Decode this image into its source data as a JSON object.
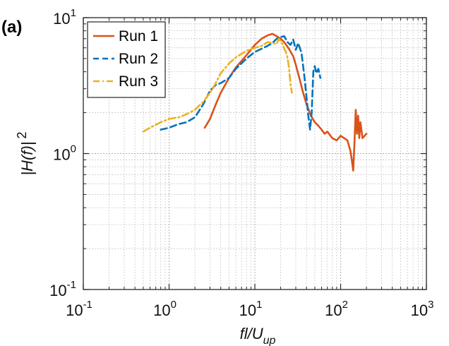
{
  "panel_label": "(a)",
  "chart_data": {
    "type": "line",
    "xlabel": {
      "main": "fl/U",
      "sub": "up"
    },
    "ylabel": {
      "main": "|H(f)|",
      "sup": "2"
    },
    "xscale": "log",
    "yscale": "log",
    "xlim": [
      0.1,
      1000
    ],
    "ylim": [
      0.1,
      10
    ],
    "grid": true,
    "legend_position": "top-left",
    "x_ticks": [
      {
        "base": "10",
        "exp": "-1"
      },
      {
        "base": "10",
        "exp": "0"
      },
      {
        "base": "10",
        "exp": "1"
      },
      {
        "base": "10",
        "exp": "2"
      },
      {
        "base": "10",
        "exp": "3"
      }
    ],
    "y_ticks": [
      {
        "base": "10",
        "exp": "-1"
      },
      {
        "base": "10",
        "exp": "0"
      },
      {
        "base": "10",
        "exp": "1"
      }
    ],
    "series": [
      {
        "name": "Run 1",
        "color": "#D95319",
        "dash": "solid",
        "x": [
          2.6,
          3.0,
          3.5,
          4.0,
          5.0,
          6.0,
          8.0,
          10.0,
          12.0,
          14.0,
          16.0,
          18.0,
          20.0,
          22.0,
          25.0,
          28.0,
          30.0,
          33.0,
          36.0,
          40.0,
          45.0,
          50.0,
          55.0,
          60.0,
          65.0,
          70.0,
          80.0,
          90.0,
          100.0,
          110.0,
          120.0,
          130.0,
          135.0,
          140.0,
          145.0,
          150.0,
          155.0,
          160.0,
          165.0,
          170.0,
          180.0,
          190.0,
          200.0
        ],
        "y": [
          1.55,
          1.8,
          2.3,
          2.8,
          3.6,
          4.3,
          5.3,
          6.3,
          7.0,
          7.4,
          7.6,
          7.3,
          7.0,
          6.6,
          5.9,
          5.2,
          4.5,
          3.6,
          2.9,
          2.3,
          1.9,
          1.7,
          1.6,
          1.5,
          1.4,
          1.45,
          1.3,
          1.25,
          1.35,
          1.3,
          1.25,
          1.05,
          0.9,
          0.75,
          1.2,
          2.1,
          1.4,
          1.9,
          1.3,
          1.7,
          1.3,
          1.35,
          1.4
        ]
      },
      {
        "name": "Run 2",
        "color": "#0072BD",
        "dash": "dashed",
        "x": [
          0.8,
          1.0,
          1.3,
          1.6,
          2.0,
          2.5,
          3.0,
          3.5,
          4.0,
          5.0,
          6.0,
          8.0,
          10.0,
          12.0,
          14.0,
          16.0,
          18.0,
          20.0,
          22.0,
          24.0,
          26.0,
          28.0,
          30.0,
          32.0,
          35.0,
          38.0,
          40.0,
          42.0,
          44.0,
          46.0,
          48.0,
          50.0,
          52.0,
          55.0,
          58.0
        ],
        "y": [
          1.5,
          1.55,
          1.65,
          1.7,
          1.85,
          2.3,
          2.9,
          3.2,
          3.3,
          3.6,
          4.2,
          5.0,
          5.6,
          5.9,
          6.2,
          6.5,
          7.0,
          7.2,
          7.3,
          6.6,
          6.3,
          6.9,
          5.8,
          6.5,
          5.5,
          3.6,
          2.6,
          1.9,
          1.5,
          2.0,
          4.0,
          4.4,
          3.9,
          4.2,
          3.6
        ]
      },
      {
        "name": "Run 3",
        "color": "#EDB120",
        "dash": "dashdot",
        "x": [
          0.5,
          0.6,
          0.8,
          1.0,
          1.3,
          1.6,
          2.0,
          2.5,
          3.0,
          3.5,
          4.0,
          5.0,
          6.0,
          8.0,
          10.0,
          12.0,
          14.0,
          16.0,
          18.0,
          19.0,
          20.0,
          21.0,
          22.0,
          23.0,
          24.0,
          25.0,
          26.0,
          27.0
        ],
        "y": [
          1.45,
          1.55,
          1.7,
          1.8,
          1.85,
          1.95,
          2.1,
          2.4,
          2.8,
          3.3,
          3.9,
          4.6,
          5.1,
          5.7,
          6.0,
          6.2,
          6.6,
          6.5,
          6.4,
          7.0,
          6.7,
          6.4,
          5.9,
          5.6,
          5.1,
          4.3,
          3.3,
          2.8
        ]
      }
    ]
  }
}
